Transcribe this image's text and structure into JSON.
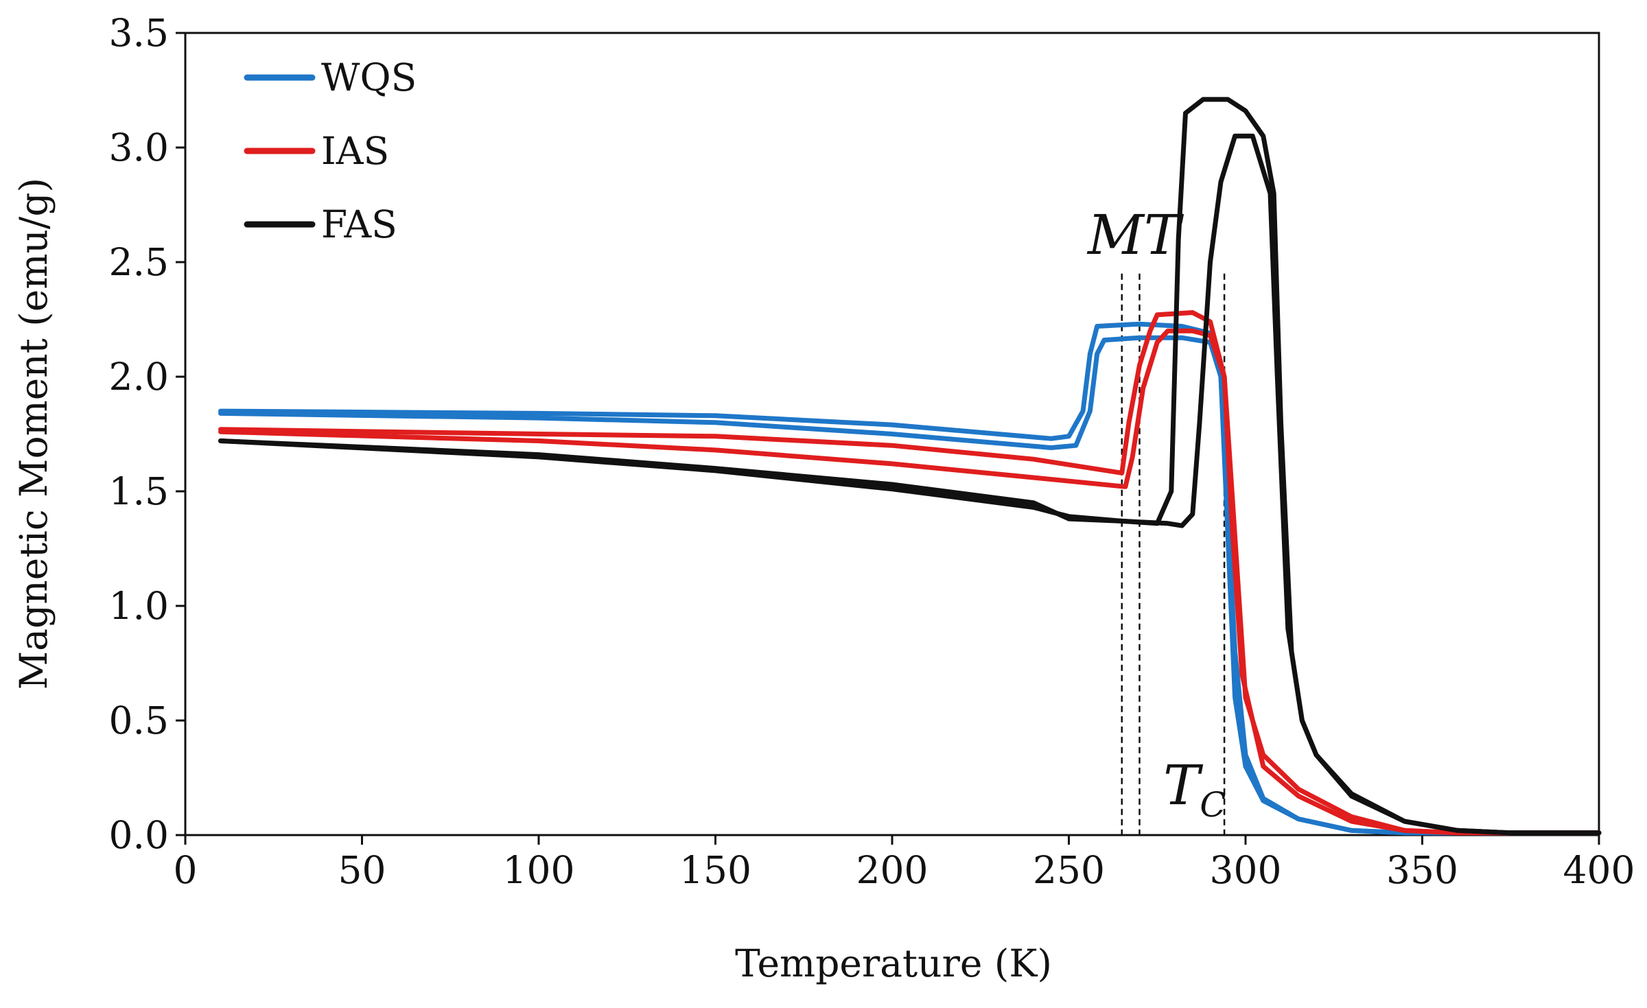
{
  "chart_data": {
    "type": "line",
    "title": "",
    "xlabel": "Temperature (K)",
    "ylabel": "Magnetic Moment (emu/g)",
    "xlim": [
      0,
      400
    ],
    "ylim": [
      0,
      3.5
    ],
    "xticks": [
      "0",
      "50",
      "100",
      "150",
      "200",
      "250",
      "300",
      "350",
      "400"
    ],
    "yticks": [
      "0.0",
      "0.5",
      "1.0",
      "1.5",
      "2.0",
      "2.5",
      "3.0",
      "3.5"
    ],
    "grid": false,
    "legend_position": "top-left",
    "annotations": {
      "mt_main": "MT",
      "tc_main": "T",
      "tc_sub": "C",
      "marker_lines_x": [
        265,
        270,
        294
      ]
    },
    "series": [
      {
        "name": "WQS",
        "color": "#1f77c8",
        "curves": [
          [
            [
              10,
              1.85
            ],
            [
              100,
              1.84
            ],
            [
              150,
              1.83
            ],
            [
              200,
              1.79
            ],
            [
              245,
              1.73
            ],
            [
              250,
              1.74
            ],
            [
              254,
              1.85
            ],
            [
              256,
              2.1
            ],
            [
              258,
              2.22
            ],
            [
              270,
              2.23
            ],
            [
              282,
              2.22
            ],
            [
              290,
              2.19
            ],
            [
              293,
              2.0
            ],
            [
              295,
              1.3
            ],
            [
              297,
              0.6
            ],
            [
              300,
              0.3
            ],
            [
              305,
              0.15
            ],
            [
              315,
              0.07
            ],
            [
              330,
              0.02
            ],
            [
              345,
              0.01
            ],
            [
              400,
              0.01
            ]
          ],
          [
            [
              10,
              1.84
            ],
            [
              100,
              1.82
            ],
            [
              150,
              1.8
            ],
            [
              200,
              1.75
            ],
            [
              245,
              1.69
            ],
            [
              252,
              1.7
            ],
            [
              256,
              1.85
            ],
            [
              258,
              2.1
            ],
            [
              260,
              2.16
            ],
            [
              270,
              2.17
            ],
            [
              282,
              2.17
            ],
            [
              290,
              2.15
            ],
            [
              293,
              2.0
            ],
            [
              295,
              1.4
            ],
            [
              297,
              0.8
            ],
            [
              300,
              0.35
            ],
            [
              305,
              0.16
            ],
            [
              315,
              0.07
            ],
            [
              330,
              0.02
            ],
            [
              345,
              0.01
            ],
            [
              400,
              0.01
            ]
          ]
        ]
      },
      {
        "name": "IAS",
        "color": "#e01e1e",
        "curves": [
          [
            [
              10,
              1.77
            ],
            [
              100,
              1.75
            ],
            [
              150,
              1.74
            ],
            [
              200,
              1.7
            ],
            [
              240,
              1.64
            ],
            [
              265,
              1.58
            ],
            [
              267,
              1.8
            ],
            [
              270,
              2.05
            ],
            [
              273,
              2.2
            ],
            [
              275,
              2.27
            ],
            [
              285,
              2.28
            ],
            [
              290,
              2.24
            ],
            [
              294,
              2.0
            ],
            [
              297,
              1.3
            ],
            [
              300,
              0.6
            ],
            [
              305,
              0.35
            ],
            [
              315,
              0.2
            ],
            [
              330,
              0.08
            ],
            [
              345,
              0.02
            ],
            [
              360,
              0.01
            ],
            [
              400,
              0.01
            ]
          ],
          [
            [
              10,
              1.76
            ],
            [
              100,
              1.72
            ],
            [
              150,
              1.68
            ],
            [
              200,
              1.62
            ],
            [
              240,
              1.56
            ],
            [
              266,
              1.52
            ],
            [
              268,
              1.65
            ],
            [
              271,
              1.95
            ],
            [
              275,
              2.15
            ],
            [
              278,
              2.2
            ],
            [
              285,
              2.2
            ],
            [
              290,
              2.18
            ],
            [
              294,
              2.0
            ],
            [
              296,
              1.4
            ],
            [
              299,
              0.7
            ],
            [
              305,
              0.3
            ],
            [
              315,
              0.17
            ],
            [
              330,
              0.06
            ],
            [
              345,
              0.02
            ],
            [
              360,
              0.01
            ],
            [
              400,
              0.01
            ]
          ]
        ]
      },
      {
        "name": "FAS",
        "color": "#111111",
        "curves": [
          [
            [
              10,
              1.72
            ],
            [
              100,
              1.65
            ],
            [
              150,
              1.59
            ],
            [
              200,
              1.51
            ],
            [
              240,
              1.43
            ],
            [
              250,
              1.39
            ],
            [
              265,
              1.37
            ],
            [
              275,
              1.36
            ],
            [
              279,
              1.5
            ],
            [
              281,
              2.6
            ],
            [
              283,
              3.15
            ],
            [
              288,
              3.21
            ],
            [
              295,
              3.21
            ],
            [
              300,
              3.16
            ],
            [
              305,
              3.05
            ],
            [
              308,
              2.8
            ],
            [
              310,
              1.8
            ],
            [
              313,
              0.8
            ],
            [
              316,
              0.5
            ],
            [
              320,
              0.35
            ],
            [
              330,
              0.18
            ],
            [
              345,
              0.06
            ],
            [
              360,
              0.02
            ],
            [
              375,
              0.01
            ],
            [
              400,
              0.01
            ]
          ],
          [
            [
              10,
              1.72
            ],
            [
              100,
              1.66
            ],
            [
              150,
              1.6
            ],
            [
              200,
              1.53
            ],
            [
              240,
              1.45
            ],
            [
              250,
              1.38
            ],
            [
              265,
              1.37
            ],
            [
              278,
              1.36
            ],
            [
              282,
              1.35
            ],
            [
              285,
              1.4
            ],
            [
              287,
              1.8
            ],
            [
              290,
              2.5
            ],
            [
              293,
              2.85
            ],
            [
              297,
              3.05
            ],
            [
              302,
              3.05
            ],
            [
              307,
              2.8
            ],
            [
              309,
              2.0
            ],
            [
              312,
              0.9
            ],
            [
              316,
              0.5
            ],
            [
              320,
              0.35
            ],
            [
              330,
              0.17
            ],
            [
              345,
              0.06
            ],
            [
              360,
              0.02
            ],
            [
              375,
              0.01
            ],
            [
              400,
              0.01
            ]
          ]
        ]
      }
    ]
  }
}
